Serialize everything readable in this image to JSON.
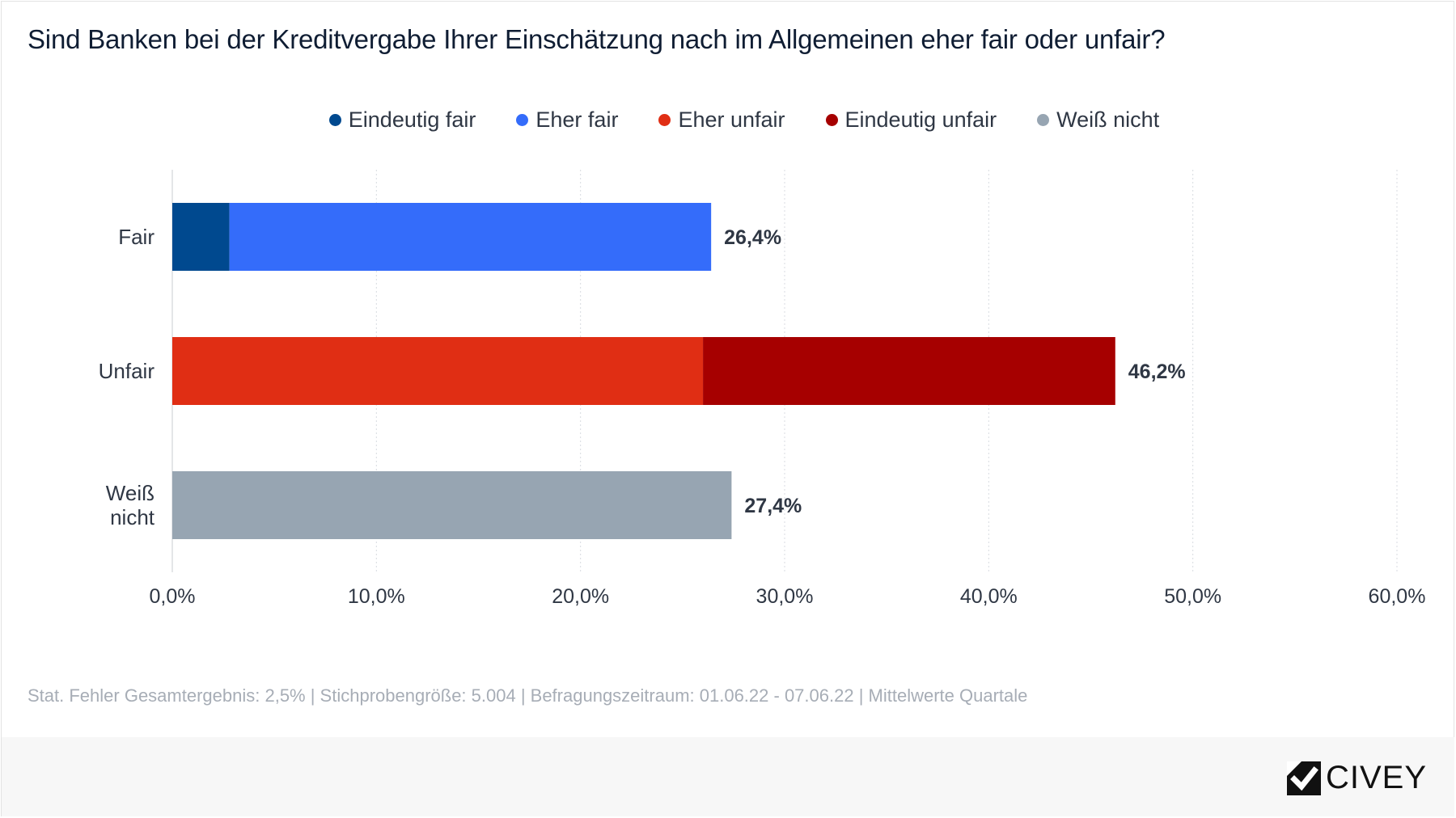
{
  "title": "Sind Banken bei der Kreditvergabe Ihrer Einschätzung nach im Allgemeinen eher fair oder unfair?",
  "legend": [
    {
      "label": "Eindeutig fair",
      "color": "#00498f"
    },
    {
      "label": "Eher fair",
      "color": "#346cfa"
    },
    {
      "label": "Eher unfair",
      "color": "#e02e14"
    },
    {
      "label": "Eindeutig unfair",
      "color": "#a60000"
    },
    {
      "label": "Weiß nicht",
      "color": "#97a5b2"
    }
  ],
  "chart_data": {
    "type": "bar",
    "orientation": "horizontal",
    "stacked": true,
    "categories": [
      "Fair",
      "Unfair",
      "Weiß nicht"
    ],
    "series": [
      {
        "name": "Eindeutig fair",
        "color": "#00498f",
        "values": [
          2.8,
          0,
          0
        ]
      },
      {
        "name": "Eher fair",
        "color": "#346cfa",
        "values": [
          23.6,
          0,
          0
        ]
      },
      {
        "name": "Eher unfair",
        "color": "#e02e14",
        "values": [
          0,
          26.0,
          0
        ]
      },
      {
        "name": "Eindeutig unfair",
        "color": "#a60000",
        "values": [
          0,
          20.2,
          0
        ]
      },
      {
        "name": "Weiß nicht",
        "color": "#97a5b2",
        "values": [
          0,
          0,
          27.4
        ]
      }
    ],
    "totals": [
      "26,4%",
      "46,2%",
      "27,4%"
    ],
    "xlim": [
      0,
      60
    ],
    "xticks": [
      "0,0%",
      "10,0%",
      "20,0%",
      "30,0%",
      "40,0%",
      "50,0%",
      "60,0%"
    ],
    "grid": true,
    "legend_position": "top"
  },
  "footer_note": "Stat. Fehler Gesamtergebnis: 2,5% | Stichprobengröße: 5.004 | Befragungszeitraum: 01.06.22 - 07.06.22 | Mittelwerte Quartale",
  "brand": {
    "name": "CIVEY",
    "icon": "civey-logo-icon"
  }
}
